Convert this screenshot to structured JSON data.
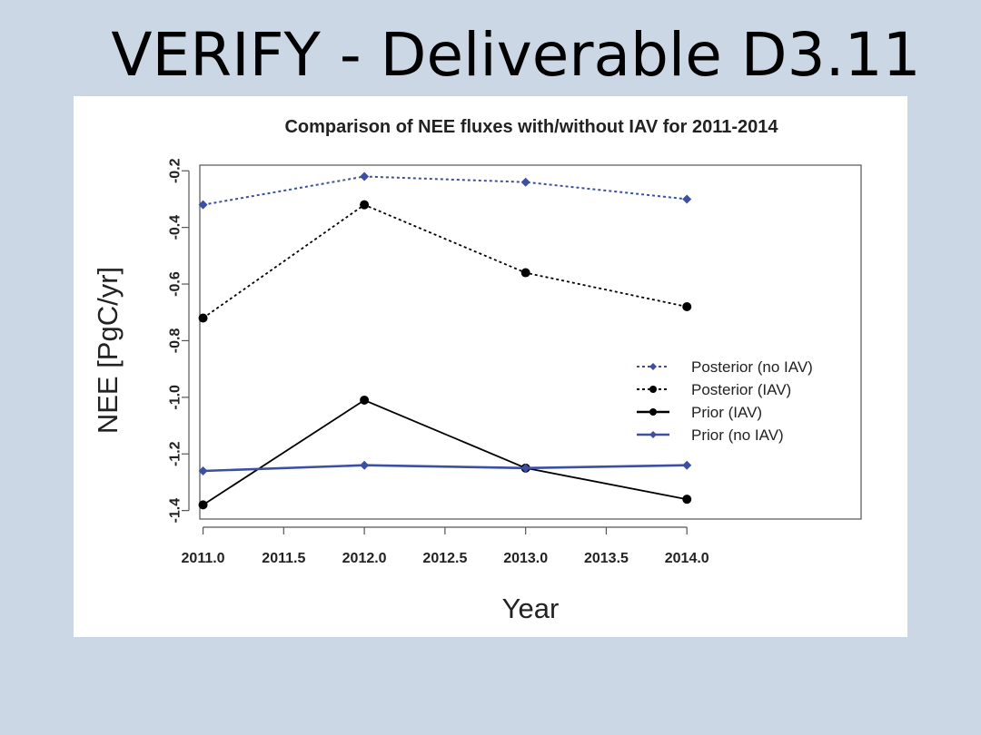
{
  "slide": {
    "title": "VERIFY - Deliverable D3.11"
  },
  "chart_data": {
    "type": "line",
    "title": "Comparison of NEE fluxes with/without IAV for 2011-2014",
    "xlabel": "Year",
    "ylabel": "NEE [PgC/yr]",
    "x": [
      2011.0,
      2012.0,
      2013.0,
      2014.0
    ],
    "xlim": [
      2010.98,
      2015.08
    ],
    "ylim": [
      -1.43,
      -0.18
    ],
    "x_ticks": [
      "2011.0",
      "2011.5",
      "2012.0",
      "2012.5",
      "2013.0",
      "2013.5",
      "2014.0"
    ],
    "y_ticks": [
      "-1.4",
      "-1.2",
      "-1.0",
      "-0.8",
      "-0.6",
      "-0.4",
      "-0.2"
    ],
    "grid": false,
    "legend_position": "right",
    "series": [
      {
        "name": "Posterior (no IAV)",
        "values": [
          -0.32,
          -0.22,
          -0.24,
          -0.3
        ],
        "color": "#3d4fa0",
        "style": "dotted"
      },
      {
        "name": "Posterior (IAV)",
        "values": [
          -0.72,
          -0.32,
          -0.56,
          -0.68
        ],
        "color": "#000000",
        "style": "dotted"
      },
      {
        "name": "Prior (IAV)",
        "values": [
          -1.38,
          -1.01,
          -1.25,
          -1.36
        ],
        "color": "#000000",
        "style": "solid"
      },
      {
        "name": "Prior (no IAV)",
        "values": [
          -1.26,
          -1.24,
          -1.25,
          -1.24
        ],
        "color": "#3d4fa0",
        "style": "solid"
      }
    ]
  }
}
